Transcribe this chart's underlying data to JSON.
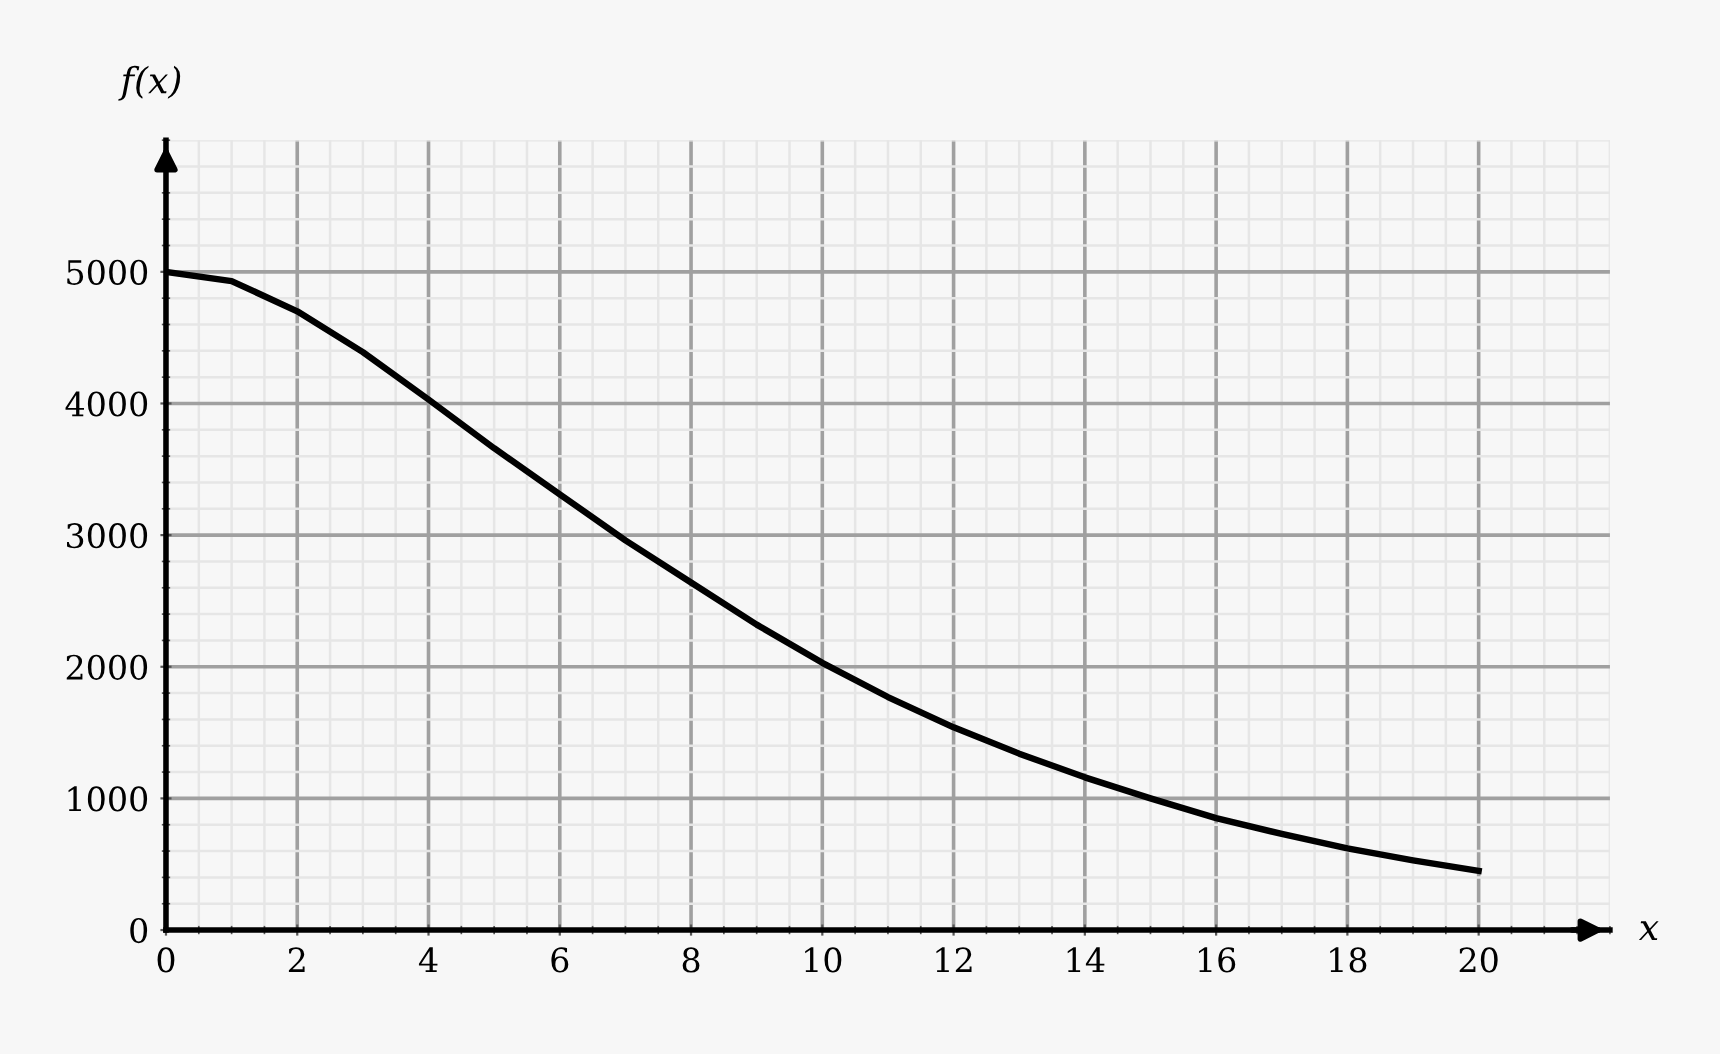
{
  "chart_data": {
    "type": "line",
    "xlabel": "x",
    "ylabel": "f(x)",
    "x": [
      0,
      1,
      2,
      3,
      4,
      5,
      6,
      7,
      8,
      9,
      10,
      11,
      12,
      13,
      14,
      15,
      16,
      17,
      18,
      19,
      20
    ],
    "series": [
      {
        "color": "#000000",
        "values": [
          5000,
          4930,
          4700,
          4390,
          4030,
          3660,
          3310,
          2960,
          2640,
          2320,
          2030,
          1770,
          1540,
          1340,
          1160,
          1000,
          850,
          730,
          620,
          530,
          450
        ]
      }
    ],
    "xlim": [
      0,
      22
    ],
    "ylim": [
      0,
      6000
    ],
    "xticks": [
      0,
      2,
      4,
      6,
      8,
      10,
      12,
      14,
      16,
      18,
      20
    ],
    "yticks": [
      0,
      1000,
      2000,
      3000,
      4000,
      5000
    ],
    "grid": true,
    "legend": false,
    "marker": "none",
    "line_style": "solid"
  }
}
